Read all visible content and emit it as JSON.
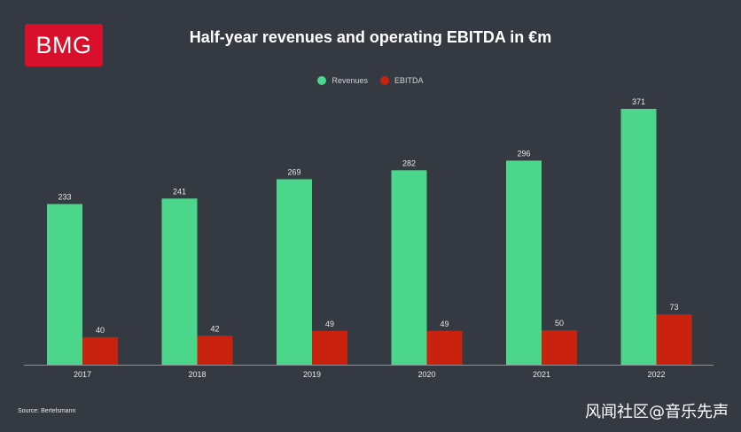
{
  "logo": {
    "text": "BMG"
  },
  "colors": {
    "background": "#353a42",
    "revenues": "#4bd68b",
    "ebitda": "#c9220f",
    "axis": "#8a8f96",
    "label": "#e6e8ea"
  },
  "chart_data": {
    "type": "bar",
    "title": "Half-year revenues and operating EBITDA in €m",
    "categories": [
      "2017",
      "2018",
      "2019",
      "2020",
      "2021",
      "2022"
    ],
    "series": [
      {
        "name": "Revenues",
        "values": [
          233,
          241,
          269,
          282,
          296,
          371
        ]
      },
      {
        "name": "EBITDA",
        "values": [
          40,
          42,
          49,
          49,
          50,
          73
        ]
      }
    ],
    "ylim": [
      0,
      371
    ],
    "legend": "top-center",
    "grid": false,
    "xlabel": "",
    "ylabel": ""
  },
  "footer": {
    "source": "Source: Bertelsmann",
    "watermark": "风闻社区@音乐先声"
  }
}
